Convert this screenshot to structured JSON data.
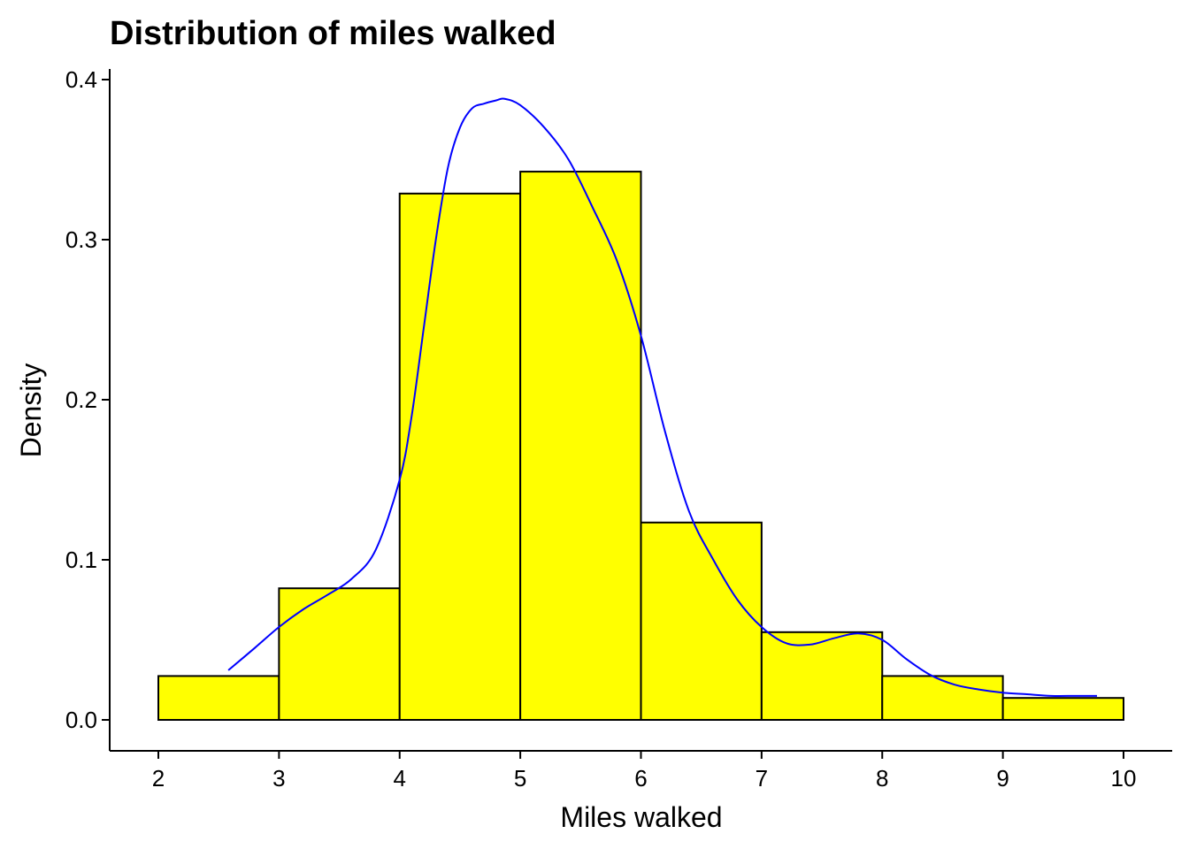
{
  "chart_data": {
    "type": "bar",
    "subtype": "histogram-with-density",
    "title": "Distribution of miles walked",
    "xlabel": "Miles walked",
    "ylabel": "Density",
    "xlim": [
      2,
      10
    ],
    "ylim": [
      0,
      0.4
    ],
    "x_ticks": [
      "2",
      "3",
      "4",
      "5",
      "6",
      "7",
      "8",
      "9",
      "10"
    ],
    "y_ticks": [
      "0.0",
      "0.1",
      "0.2",
      "0.3",
      "0.4"
    ],
    "bins": [
      {
        "start": 2,
        "end": 3,
        "density": 0.0274
      },
      {
        "start": 3,
        "end": 4,
        "density": 0.0822
      },
      {
        "start": 4,
        "end": 5,
        "density": 0.3288
      },
      {
        "start": 5,
        "end": 6,
        "density": 0.3425
      },
      {
        "start": 6,
        "end": 7,
        "density": 0.1233
      },
      {
        "start": 7,
        "end": 8,
        "density": 0.0548
      },
      {
        "start": 8,
        "end": 9,
        "density": 0.0274
      },
      {
        "start": 9,
        "end": 10,
        "density": 0.0137
      }
    ],
    "density_curve": {
      "x": [
        2.58,
        2.8,
        3.0,
        3.2,
        3.4,
        3.6,
        3.8,
        4.0,
        4.1,
        4.2,
        4.3,
        4.4,
        4.5,
        4.6,
        4.7,
        4.8,
        4.87,
        5.0,
        5.2,
        5.4,
        5.6,
        5.8,
        6.0,
        6.2,
        6.4,
        6.6,
        6.8,
        7.0,
        7.2,
        7.4,
        7.6,
        7.8,
        8.0,
        8.2,
        8.4,
        8.6,
        8.8,
        9.0,
        9.2,
        9.4,
        9.6,
        9.78
      ],
      "y": [
        0.031,
        0.045,
        0.058,
        0.069,
        0.078,
        0.088,
        0.106,
        0.15,
        0.19,
        0.245,
        0.3,
        0.345,
        0.37,
        0.382,
        0.385,
        0.387,
        0.388,
        0.384,
        0.37,
        0.35,
        0.32,
        0.287,
        0.24,
        0.18,
        0.13,
        0.1,
        0.075,
        0.058,
        0.048,
        0.047,
        0.051,
        0.054,
        0.05,
        0.038,
        0.028,
        0.022,
        0.019,
        0.017,
        0.016,
        0.015,
        0.015,
        0.015
      ]
    },
    "bar_fill": "#FFFF00",
    "bar_stroke": "#000000",
    "curve_color": "#0000FF",
    "grid": false,
    "legend": "none"
  }
}
